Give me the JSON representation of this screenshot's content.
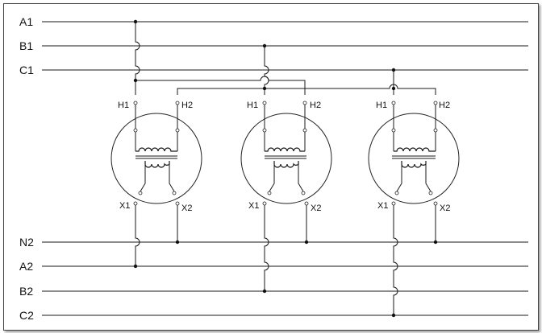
{
  "diagram": {
    "buses_top": [
      "A1",
      "B1",
      "C1"
    ],
    "buses_bottom": [
      "N2",
      "A2",
      "B2",
      "C2"
    ],
    "transformers": [
      {
        "h1": "H1",
        "h2": "H2",
        "x1": "X1",
        "x2": "X2"
      },
      {
        "h1": "H1",
        "h2": "H2",
        "x1": "X1",
        "x2": "X2"
      },
      {
        "h1": "H1",
        "h2": "H2",
        "x1": "X1",
        "x2": "X2"
      }
    ]
  },
  "colors": {
    "line": "#1a1a1a",
    "background": "#ffffff"
  }
}
